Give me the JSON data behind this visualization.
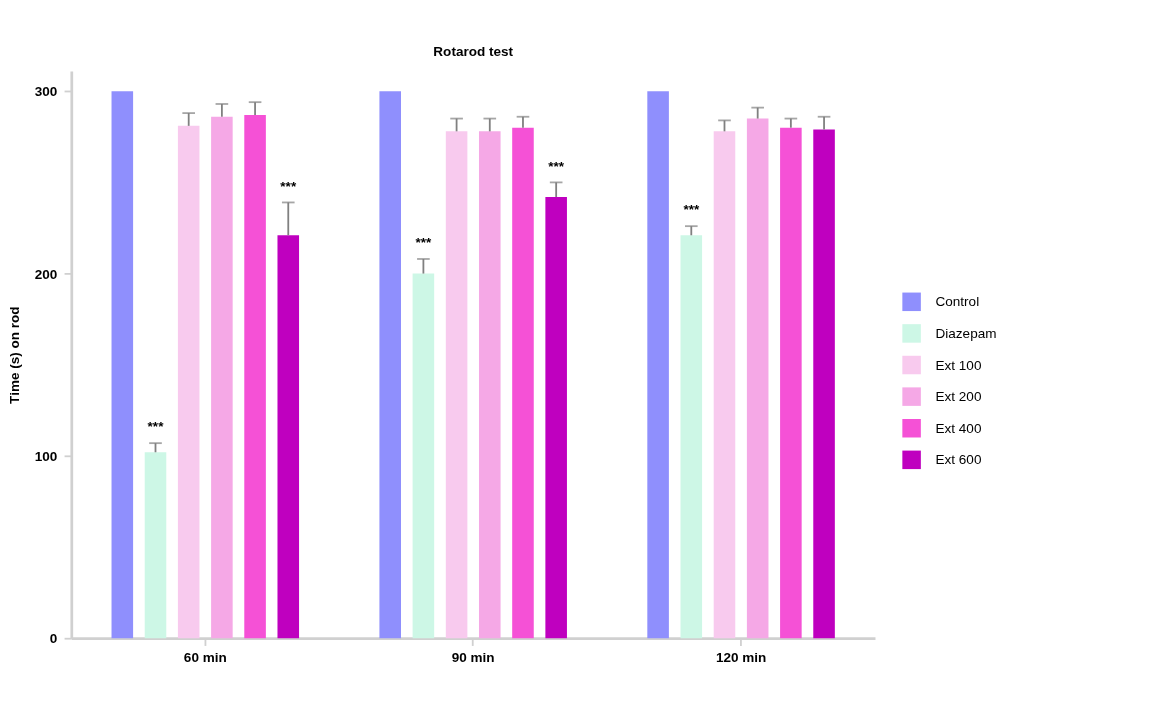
{
  "chart_data": {
    "type": "bar",
    "title": "Rotarod test",
    "ylabel": "Time (s) on rod",
    "categories": [
      "60 min",
      "90 min",
      "120 min"
    ],
    "series": [
      {
        "name": "Control",
        "color": "#8f8ffd",
        "values": [
          300,
          300,
          300
        ]
      },
      {
        "name": "Diazepam",
        "color": "#cdf7e6",
        "values": [
          102,
          200,
          221
        ],
        "errors": [
          [
            102,
            107
          ],
          [
            200,
            208
          ],
          [
            221,
            226
          ]
        ],
        "value_labels": [
          "***",
          "***",
          "***"
        ]
      },
      {
        "name": "Ext 100",
        "color": "#f8caee",
        "values": [
          281,
          278,
          278
        ],
        "errors": [
          [
            281,
            288
          ],
          [
            278,
            285
          ],
          [
            278,
            284
          ]
        ]
      },
      {
        "name": "Ext 200",
        "color": "#f5a8e6",
        "values": [
          286,
          278,
          285
        ],
        "errors": [
          [
            286,
            293
          ],
          [
            278,
            285
          ],
          [
            285,
            291
          ]
        ]
      },
      {
        "name": "Ext 400",
        "color": "#f551d6",
        "values": [
          287,
          280,
          280
        ],
        "errors": [
          [
            287,
            294
          ],
          [
            280,
            286
          ],
          [
            280,
            285
          ]
        ]
      },
      {
        "name": "Ext 600",
        "color": "#bf00bf",
        "values": [
          221,
          242,
          279
        ],
        "errors": [
          [
            221,
            239
          ],
          [
            242,
            250
          ],
          [
            279,
            286
          ]
        ],
        "value_labels": [
          "***",
          "***",
          null
        ]
      }
    ],
    "ylim": [
      0,
      311
    ],
    "yticks": [
      0,
      100,
      200,
      300
    ],
    "grid": false,
    "legend": "right"
  }
}
